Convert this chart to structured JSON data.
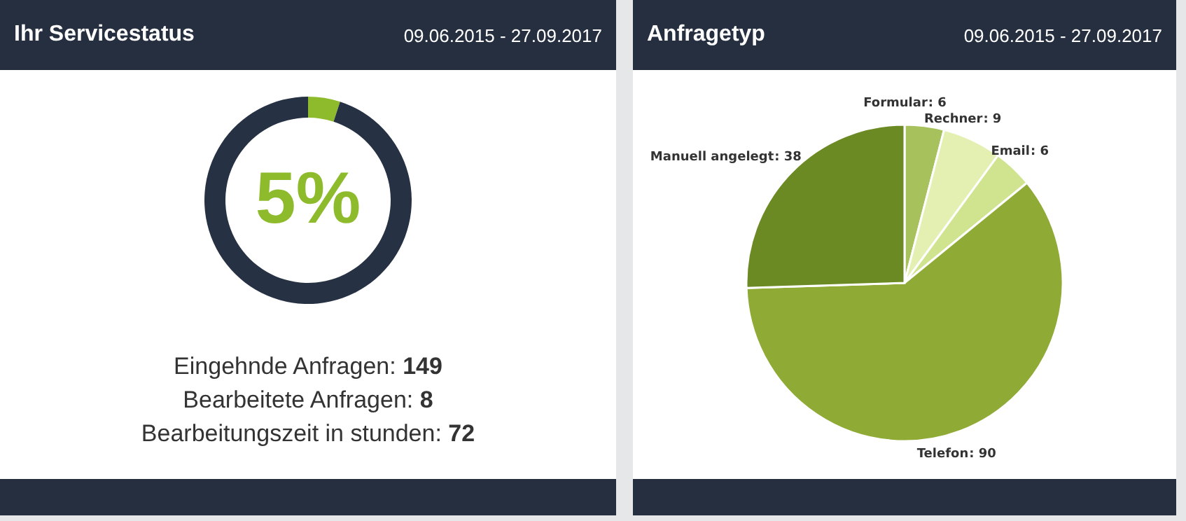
{
  "chart_data": [
    {
      "type": "donut",
      "title": "Ihr Servicestatus",
      "subtitle": "09.06.2015 - 27.09.2017",
      "categories": [
        null,
        null
      ],
      "values": [
        5,
        95
      ],
      "colors": [
        "#8dbb2c",
        "#263143"
      ],
      "value_labels": [
        "5%",
        null
      ],
      "annotations": [
        "Eingehnde Anfragen: 149",
        "Bearbeitete Anfragen: 8",
        "Bearbeitungszeit in stunden: 72"
      ]
    },
    {
      "type": "pie",
      "title": "Anfragetyp",
      "subtitle": "09.06.2015 - 27.09.2017",
      "categories": [
        "Formular",
        "Rechner",
        "Email",
        "Telefon",
        "Manuell angelegt"
      ],
      "values": [
        6,
        9,
        6,
        90,
        38
      ],
      "colors": [
        "#a7c25c",
        "#e3f0b2",
        "#d0e48f",
        "#8fab36",
        "#6c8a23"
      ],
      "value_labels": [
        ": 6",
        ": 9",
        ": 6",
        ": 90",
        ": 38"
      ]
    }
  ]
}
